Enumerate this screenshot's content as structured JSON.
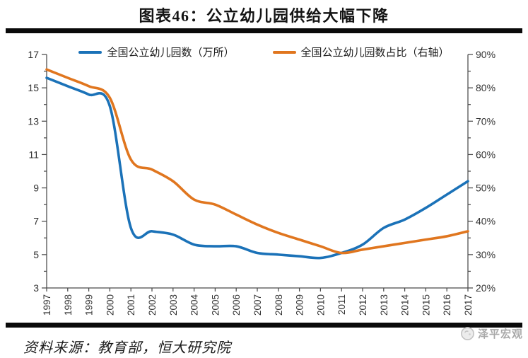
{
  "title": "图表46：公立幼儿园供给大幅下降",
  "legend": {
    "series1": "全国公立幼儿园数（万所）",
    "series2": "全国公立幼儿园数占比（右轴）"
  },
  "source": "资料来源：教育部，恒大研究院",
  "watermark": "泽平宏观",
  "colors": {
    "blue": "#1B72B8",
    "orange": "#E0761F",
    "axis": "#4a4a4a",
    "tick_text": "#333333",
    "divider_bar": "#0a0a0a",
    "watermark_gray": "#a9a9a9"
  },
  "chart_data": {
    "type": "line",
    "title": "图表46：公立幼儿园供给大幅下降",
    "x": [
      "1997",
      "1998",
      "1999",
      "2000",
      "2001",
      "2002",
      "2003",
      "2004",
      "2005",
      "2006",
      "2007",
      "2008",
      "2009",
      "2010",
      "2011",
      "2012",
      "2013",
      "2014",
      "2015",
      "2016",
      "2017"
    ],
    "series": [
      {
        "name": "全国公立幼儿园数（万所）",
        "axis": "left",
        "color": "#1B72B8",
        "values": [
          15.6,
          15.1,
          14.6,
          13.9,
          6.6,
          6.4,
          6.2,
          5.6,
          5.5,
          5.5,
          5.1,
          5.0,
          4.9,
          4.8,
          5.1,
          5.6,
          6.6,
          7.1,
          7.8,
          8.6,
          9.4
        ]
      },
      {
        "name": "全国公立幼儿园数占比（右轴）",
        "axis": "right",
        "color": "#E0761F",
        "values": [
          85.5,
          83.0,
          80.5,
          77.0,
          58.5,
          55.5,
          52.0,
          46.5,
          45.0,
          42.0,
          39.0,
          36.5,
          34.5,
          32.5,
          30.5,
          31.5,
          32.5,
          33.5,
          34.5,
          35.5,
          37.0
        ]
      }
    ],
    "left_axis": {
      "min": 3,
      "max": 17,
      "major_step": 2,
      "minor_step": 1,
      "tick_labels": [
        "3",
        "5",
        "7",
        "9",
        "11",
        "13",
        "15",
        "17"
      ]
    },
    "right_axis": {
      "min": 20,
      "max": 90,
      "major_step": 10,
      "minor_step": 5,
      "tick_labels": [
        "20%",
        "30%",
        "40%",
        "50%",
        "60%",
        "70%",
        "80%",
        "90%"
      ]
    },
    "legend_position": "top-center",
    "grid": false,
    "smooth_lines": true
  }
}
